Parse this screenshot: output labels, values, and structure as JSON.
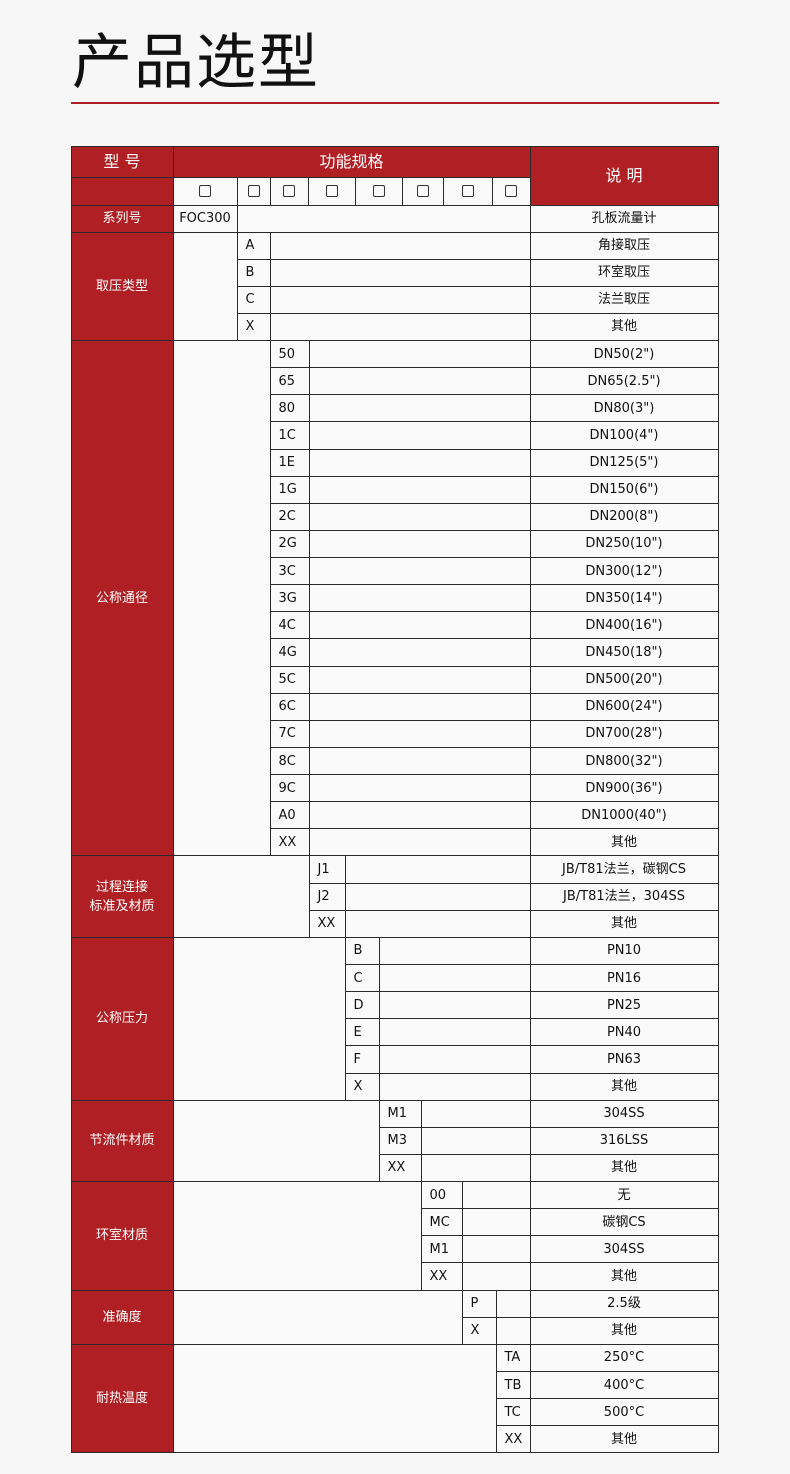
{
  "title": "产品选型",
  "header": {
    "model": "型 号",
    "function": "功能规格",
    "description": "说 明",
    "checkbox_count": 8
  },
  "series": {
    "label": "系列号",
    "code": "FOC300",
    "description": "孔板流量计"
  },
  "groups": [
    {
      "label": "取压类型",
      "rows": [
        [
          "A",
          "角接取压"
        ],
        [
          "B",
          "环室取压"
        ],
        [
          "C",
          "法兰取压"
        ],
        [
          "X",
          "其他"
        ]
      ]
    },
    {
      "label": "公称通径",
      "rows": [
        [
          "50",
          "DN50(2\")"
        ],
        [
          "65",
          "DN65(2.5\")"
        ],
        [
          "80",
          "DN80(3\")"
        ],
        [
          "1C",
          "DN100(4\")"
        ],
        [
          "1E",
          "DN125(5\")"
        ],
        [
          "1G",
          "DN150(6\")"
        ],
        [
          "2C",
          "DN200(8\")"
        ],
        [
          "2G",
          "DN250(10\")"
        ],
        [
          "3C",
          "DN300(12\")"
        ],
        [
          "3G",
          "DN350(14\")"
        ],
        [
          "4C",
          "DN400(16\")"
        ],
        [
          "4G",
          "DN450(18\")"
        ],
        [
          "5C",
          "DN500(20\")"
        ],
        [
          "6C",
          "DN600(24\")"
        ],
        [
          "7C",
          "DN700(28\")"
        ],
        [
          "8C",
          "DN800(32\")"
        ],
        [
          "9C",
          "DN900(36\")"
        ],
        [
          "A0",
          "DN1000(40\")"
        ],
        [
          "XX",
          "其他"
        ]
      ]
    },
    {
      "label": "过程连接\n标准及材质",
      "rows": [
        [
          "J1",
          "JB/T81法兰，碳钢CS"
        ],
        [
          "J2",
          "JB/T81法兰，304SS"
        ],
        [
          "XX",
          "其他"
        ]
      ]
    },
    {
      "label": "公称压力",
      "rows": [
        [
          "B",
          "PN10"
        ],
        [
          "C",
          "PN16"
        ],
        [
          "D",
          "PN25"
        ],
        [
          "E",
          "PN40"
        ],
        [
          "F",
          "PN63"
        ],
        [
          "X",
          "其他"
        ]
      ]
    },
    {
      "label": "节流件材质",
      "rows": [
        [
          "M1",
          "304SS"
        ],
        [
          "M3",
          "316LSS"
        ],
        [
          "XX",
          "其他"
        ]
      ]
    },
    {
      "label": "环室材质",
      "rows": [
        [
          "00",
          "无"
        ],
        [
          "MC",
          "碳钢CS"
        ],
        [
          "M1",
          "304SS"
        ],
        [
          "XX",
          "其他"
        ]
      ]
    },
    {
      "label": "准确度",
      "rows": [
        [
          "P",
          "2.5级"
        ],
        [
          "X",
          "其他"
        ]
      ]
    },
    {
      "label": "耐热温度",
      "rows": [
        [
          "TA",
          "250°C"
        ],
        [
          "TB",
          "400°C"
        ],
        [
          "TC",
          "500°C"
        ],
        [
          "XX",
          "其他"
        ]
      ]
    }
  ],
  "colors": {
    "accent": "#b01f24"
  }
}
